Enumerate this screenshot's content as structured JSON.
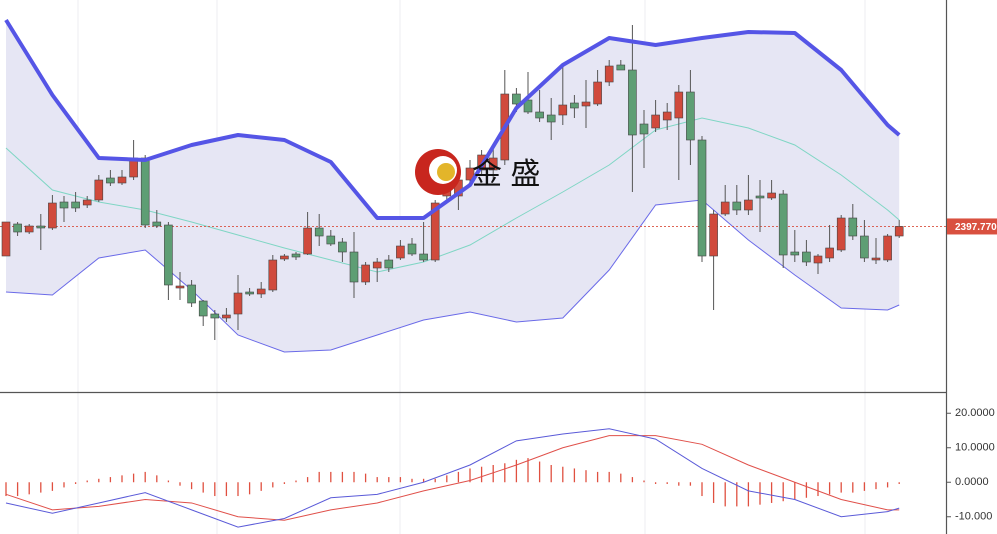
{
  "chart_data": [
    {
      "type": "candlestick",
      "ylim": [
        2315,
        2511
      ],
      "up_color": "#d04a3c",
      "down_color": "#5e9e74",
      "open": [
        2383,
        2399,
        2395,
        2398,
        2397,
        2410,
        2410,
        2408.5,
        2411,
        2422,
        2419.5,
        2422.5,
        2432,
        2400,
        2398.5,
        2367,
        2368.5,
        2360.5,
        2354,
        2352,
        2354,
        2365,
        2364,
        2366,
        2381.5,
        2384,
        2384,
        2397,
        2393,
        2390,
        2385,
        2370,
        2377,
        2381,
        2382,
        2389,
        2384,
        2381,
        2413,
        2413,
        2421,
        2426,
        2426,
        2431,
        2464,
        2461,
        2455,
        2453.5,
        2453.5,
        2459.5,
        2458,
        2459,
        2470,
        2478.5,
        2476,
        2449,
        2447,
        2451,
        2452,
        2465,
        2441,
        2383,
        2404,
        2410,
        2406,
        2413,
        2412,
        2414,
        2385,
        2385,
        2379.5,
        2382,
        2386,
        2402,
        2393,
        2381,
        2381,
        2393
      ],
      "high": [
        2400,
        2400,
        2399,
        2404,
        2413.5,
        2413,
        2415,
        2413,
        2423.5,
        2426,
        2426,
        2441,
        2433.5,
        2406,
        2400,
        2375,
        2371,
        2361,
        2356,
        2357,
        2373.5,
        2367,
        2370,
        2383.5,
        2384,
        2385,
        2405,
        2404,
        2396,
        2392,
        2395,
        2380,
        2382,
        2383.5,
        2391,
        2392,
        2400,
        2411,
        2423.5,
        2423.5,
        2431,
        2436,
        2438.5,
        2476,
        2467,
        2475,
        2466,
        2462,
        2478.5,
        2463.5,
        2471,
        2476,
        2481,
        2481,
        2498.5,
        2456,
        2461,
        2459.5,
        2468.5,
        2476,
        2443,
        2406,
        2418.5,
        2418.5,
        2423.5,
        2421,
        2421,
        2416,
        2396,
        2391,
        2384,
        2398.5,
        2403.5,
        2409,
        2401,
        2392,
        2394,
        2401
      ],
      "low": [
        2383,
        2393,
        2394,
        2386,
        2396,
        2400,
        2405,
        2407,
        2410,
        2418,
        2418.5,
        2421,
        2397,
        2397,
        2361,
        2361,
        2357.5,
        2348,
        2341,
        2350,
        2346,
        2363,
        2362,
        2365,
        2380.5,
        2381,
        2383.5,
        2388,
        2388,
        2380,
        2362,
        2368.5,
        2370,
        2375,
        2381,
        2383,
        2380,
        2380,
        2411,
        2406,
        2418.5,
        2423.5,
        2421,
        2428.5,
        2455,
        2454,
        2450,
        2441,
        2448.5,
        2452,
        2447,
        2458,
        2468,
        2476,
        2415,
        2427,
        2445,
        2446,
        2421,
        2428.5,
        2380,
        2356,
        2403,
        2403.5,
        2403.5,
        2395,
        2411,
        2377,
        2380,
        2378,
        2374,
        2380,
        2385,
        2391,
        2380,
        2379,
        2380,
        2392
      ],
      "close": [
        2400,
        2395,
        2398,
        2397,
        2409.5,
        2407,
        2407,
        2411,
        2421,
        2419.5,
        2422.5,
        2432,
        2398.5,
        2398,
        2368.5,
        2368,
        2359.5,
        2353,
        2352,
        2353.5,
        2364.5,
        2364,
        2366.5,
        2381,
        2383,
        2382.5,
        2397,
        2393,
        2389,
        2385,
        2370,
        2378.5,
        2380,
        2377,
        2388,
        2384,
        2381,
        2409.5,
        2418,
        2421,
        2427,
        2433.5,
        2432,
        2464,
        2459,
        2455,
        2452,
        2450,
        2458.5,
        2457,
        2460,
        2470,
        2478,
        2476,
        2443.5,
        2444,
        2453.5,
        2455,
        2465,
        2441,
        2383,
        2404,
        2410,
        2406,
        2411,
        2412,
        2414.5,
        2383.5,
        2383.5,
        2380,
        2383,
        2387,
        2402,
        2393,
        2382,
        2382,
        2393,
        2397.77
      ],
      "bands": {
        "x": [
          0,
          4,
          8,
          12,
          16,
          20,
          24,
          28,
          32,
          36,
          40,
          44,
          48,
          52,
          56,
          60,
          64,
          68,
          72,
          76,
          77
        ],
        "upper": [
          2501,
          2463.5,
          2432,
          2431,
          2438.5,
          2443.5,
          2441,
          2430,
          2402,
          2402,
          2418.5,
          2457,
          2478.5,
          2492,
          2488.5,
          2492,
          2495,
          2494.5,
          2476,
          2448.5,
          2443.5
        ],
        "middle": [
          2437,
          2416,
          2410,
          2406,
          2400,
          2393.5,
          2387,
          2381,
          2375,
          2380,
          2388.5,
          2402,
          2415,
          2428.5,
          2446,
          2452,
          2447,
          2438.5,
          2423.5,
          2406,
          2401
        ],
        "lower": [
          2365,
          2363.5,
          2382,
          2386,
          2366,
          2343.5,
          2335,
          2336,
          2343.5,
          2351,
          2355,
          2350,
          2352,
          2376,
          2408.5,
          2411,
          2391,
          2373.5,
          2357,
          2356,
          2358.5
        ],
        "upper_color": "#5555e6",
        "middle_color": "#7fd6c4",
        "lower_color": "#6a6ae8",
        "fill_color": "#e6e6f4"
      },
      "price_line": {
        "value": 2397.77,
        "label": "2397.770"
      },
      "price_color": "#d9503f"
    },
    {
      "type": "macd",
      "ylim": [
        -15,
        25
      ],
      "yticks": [
        {
          "value": 20,
          "label": "20.0000"
        },
        {
          "value": 10,
          "label": "10.0000"
        },
        {
          "value": 0,
          "label": "0.0000"
        },
        {
          "value": -10,
          "label": "-10.000"
        }
      ],
      "histogram": [
        -4,
        -4,
        -3.5,
        -3,
        -2.5,
        -1.5,
        -0.5,
        0.5,
        1,
        1.5,
        2,
        2.5,
        3,
        2,
        0.5,
        -1,
        -2,
        -3,
        -4,
        -4,
        -4,
        -3.5,
        -2.5,
        -1.5,
        -0.5,
        0.5,
        1.5,
        3,
        3,
        3,
        3,
        2.5,
        1.5,
        1.5,
        1.5,
        1,
        1,
        1,
        2,
        3,
        4,
        4.5,
        5,
        5.5,
        6.5,
        7,
        6,
        5,
        4.5,
        4,
        3.5,
        3,
        3,
        2.5,
        1.5,
        0.5,
        -0.5,
        -0.5,
        -1,
        -1,
        -4,
        -6,
        -7,
        -7,
        -7,
        -6.5,
        -6,
        -5.5,
        -5,
        -4.5,
        -4,
        -3.5,
        -3,
        -3,
        -2.5,
        -2,
        -1.5,
        -0.5
      ],
      "line_x": [
        0,
        4,
        8,
        12,
        16,
        20,
        24,
        28,
        32,
        36,
        40,
        44,
        48,
        52,
        56,
        60,
        64,
        68,
        72,
        76,
        77
      ],
      "dif": [
        -6,
        -9,
        -6,
        -3,
        -8,
        -13,
        -10.5,
        -4.5,
        -3.5,
        0,
        5,
        12,
        14,
        15.5,
        12.5,
        4,
        -2.5,
        -5,
        -10,
        -8.5,
        -7.5
      ],
      "dea": [
        -3.5,
        -8,
        -7,
        -5,
        -6,
        -10,
        -11,
        -8,
        -6,
        -2.5,
        0.5,
        5,
        10,
        13.5,
        13.5,
        11,
        5,
        0,
        -5,
        -8,
        -8
      ],
      "hist_color": "#e05040",
      "dif_color": "#5a5ad8",
      "dea_color": "#e0504a"
    }
  ],
  "watermark": "金 盛"
}
